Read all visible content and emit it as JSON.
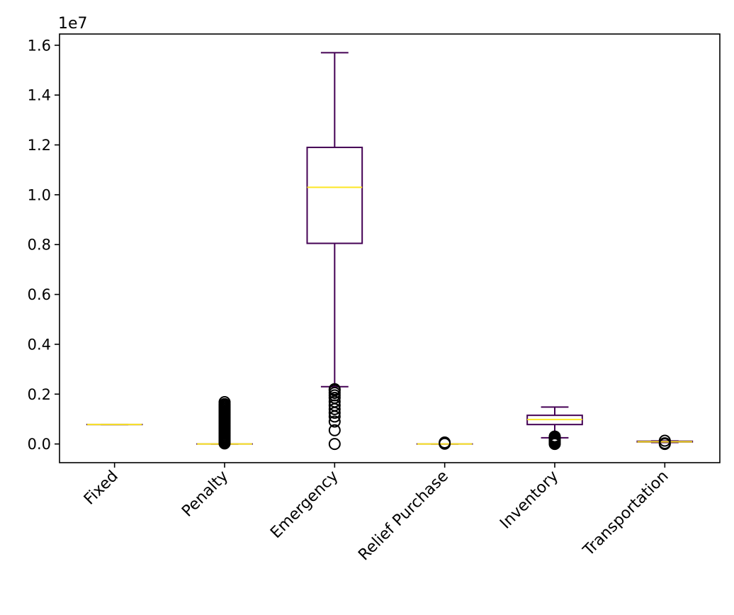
{
  "chart_data": {
    "type": "box",
    "title": "",
    "xlabel": "",
    "ylabel": "",
    "y_offset_label": "1e7",
    "y_scale": 10000000,
    "ylim": [
      -750000,
      16450000
    ],
    "yticks": [
      0,
      2000000,
      4000000,
      6000000,
      8000000,
      10000000,
      12000000,
      14000000,
      16000000
    ],
    "ytick_labels": [
      "0.0",
      "0.2",
      "0.4",
      "0.6",
      "0.8",
      "1.0",
      "1.2",
      "1.4",
      "1.6"
    ],
    "grid": false,
    "legend": "none",
    "categories": [
      "Fixed",
      "Penalty",
      "Emergency",
      "Relief Purchase",
      "Inventory",
      "Transportation"
    ],
    "boxes": [
      {
        "category": "Fixed",
        "whislo": 780000,
        "q1": 780000,
        "med": 780000,
        "q3": 780000,
        "whishi": 780000,
        "fliers": []
      },
      {
        "category": "Penalty",
        "whislo": 0,
        "q1": 0,
        "med": 0,
        "q3": 0,
        "whishi": 0,
        "fliers": [
          20000,
          60000,
          100000,
          150000,
          200000,
          250000,
          300000,
          350000,
          400000,
          450000,
          500000,
          550000,
          600000,
          650000,
          700000,
          750000,
          800000,
          850000,
          900000,
          950000,
          1000000,
          1050000,
          1100000,
          1150000,
          1200000,
          1250000,
          1300000,
          1350000,
          1400000,
          1450000,
          1500000,
          1550000,
          1600000,
          1680000
        ]
      },
      {
        "category": "Emergency",
        "whislo": 2300000,
        "q1": 8050000,
        "med": 10300000,
        "q3": 11900000,
        "whishi": 15700000,
        "fliers": [
          0,
          550000,
          900000,
          1100000,
          1250000,
          1400000,
          1550000,
          1700000,
          1850000,
          1950000,
          2050000,
          2150000,
          2200000
        ]
      },
      {
        "category": "Relief Purchase",
        "whislo": 0,
        "q1": 0,
        "med": 0,
        "q3": 0,
        "whishi": 0,
        "fliers": [
          10000,
          60000
        ]
      },
      {
        "category": "Inventory",
        "whislo": 250000,
        "q1": 780000,
        "med": 980000,
        "q3": 1150000,
        "whishi": 1480000,
        "fliers": [
          0,
          40000,
          80000,
          120000,
          160000,
          200000,
          250000,
          300000
        ]
      },
      {
        "category": "Transportation",
        "whislo": 60000,
        "q1": 80000,
        "med": 90000,
        "q3": 110000,
        "whishi": 120000,
        "fliers": [
          0,
          30000,
          130000
        ]
      }
    ],
    "colors": {
      "box": "#440154",
      "median": "#fde725",
      "flier": "#000000",
      "axis": "#000000"
    }
  }
}
